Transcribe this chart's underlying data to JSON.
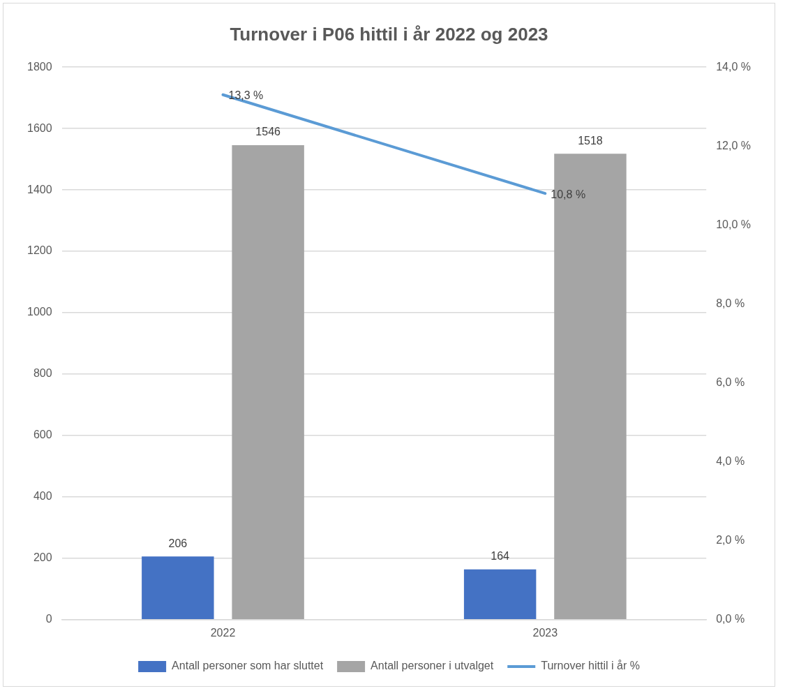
{
  "chart_data": {
    "type": "bar",
    "title": "Turnover i P06 hittil i år 2022 og 2023",
    "categories": [
      "2022",
      "2023"
    ],
    "series": [
      {
        "name": "Antall personer som har sluttet",
        "color": "#4472c4",
        "values": [
          206,
          164
        ],
        "value_labels": [
          "206",
          "164"
        ]
      },
      {
        "name": "Antall personer i utvalget",
        "color": "#a5a5a5",
        "values": [
          1546,
          1518
        ],
        "value_labels": [
          "1546",
          "1518"
        ]
      },
      {
        "name": "Turnover hittil i år %",
        "type": "line",
        "axis": "y2",
        "color": "#5b9bd5",
        "values": [
          13.3,
          10.8
        ],
        "value_labels": [
          "13,3 %",
          "10,8 %"
        ]
      }
    ],
    "ylim": [
      0,
      1800
    ],
    "yticks": [
      0,
      200,
      400,
      600,
      800,
      1000,
      1200,
      1400,
      1600,
      1800
    ],
    "y2lim": [
      0,
      14
    ],
    "y2ticks": [
      {
        "value": 0,
        "label": "0,0 %"
      },
      {
        "value": 2,
        "label": "2,0 %"
      },
      {
        "value": 4,
        "label": "4,0 %"
      },
      {
        "value": 6,
        "label": "6,0 %"
      },
      {
        "value": 8,
        "label": "8,0 %"
      },
      {
        "value": 10,
        "label": "10,0 %"
      },
      {
        "value": 12,
        "label": "12,0 %"
      },
      {
        "value": 14,
        "label": "14,0 %"
      }
    ],
    "grid": "y",
    "legend": "bottom",
    "marker": "none",
    "line_style": "solid"
  }
}
